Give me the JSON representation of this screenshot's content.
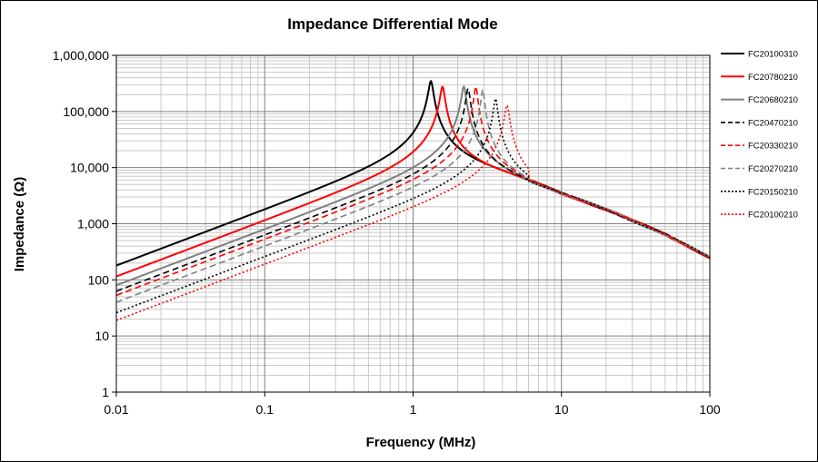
{
  "chart_data": {
    "type": "line",
    "title": "Impedance Differential Mode",
    "xlabel": "Frequency (MHz)",
    "ylabel": "Impedance (Ω)",
    "x_scale": "log",
    "y_scale": "log",
    "xlim": [
      0.01,
      100
    ],
    "ylim": [
      1,
      1000000
    ],
    "x_ticks": [
      0.01,
      0.1,
      1,
      10,
      100
    ],
    "x_tick_labels": [
      "0.01",
      "0.1",
      "1",
      "10",
      "100"
    ],
    "y_ticks": [
      1,
      10,
      100,
      1000,
      10000,
      100000,
      1000000
    ],
    "y_tick_labels": [
      "1",
      "10",
      "100",
      "1,000",
      "10,000",
      "100,000",
      "1,000,000"
    ],
    "grid": "major and minor",
    "legend_position": "right",
    "series": [
      {
        "name": "FC20100310",
        "color": "#000000",
        "style": "solid",
        "z_at_0_01": 180,
        "resonance_freq": 1.32,
        "peak": 350000
      },
      {
        "name": "FC20780210",
        "color": "#ff0000",
        "style": "solid",
        "z_at_0_01": 115,
        "resonance_freq": 1.58,
        "peak": 280000
      },
      {
        "name": "FC20680210",
        "color": "#808080",
        "style": "solid",
        "z_at_0_01": 80,
        "resonance_freq": 2.2,
        "peak": 280000
      },
      {
        "name": "FC20470210",
        "color": "#000000",
        "style": "dashed",
        "z_at_0_01": 63,
        "resonance_freq": 2.35,
        "peak": 260000
      },
      {
        "name": "FC20330210",
        "color": "#ff0000",
        "style": "dashed",
        "z_at_0_01": 53,
        "resonance_freq": 2.65,
        "peak": 280000
      },
      {
        "name": "FC20270210",
        "color": "#808080",
        "style": "dashed",
        "z_at_0_01": 40,
        "resonance_freq": 2.95,
        "peak": 250000
      },
      {
        "name": "FC20150210",
        "color": "#000000",
        "style": "dotted",
        "z_at_0_01": 26,
        "resonance_freq": 3.6,
        "peak": 170000
      },
      {
        "name": "FC20100210",
        "color": "#ff0000",
        "style": "dotted",
        "z_at_0_01": 19,
        "resonance_freq": 4.3,
        "peak": 130000
      }
    ],
    "high_frequency_tail": {
      "x": [
        6,
        10,
        20,
        50,
        100
      ],
      "y": [
        6000,
        3500,
        1800,
        650,
        250
      ]
    }
  }
}
